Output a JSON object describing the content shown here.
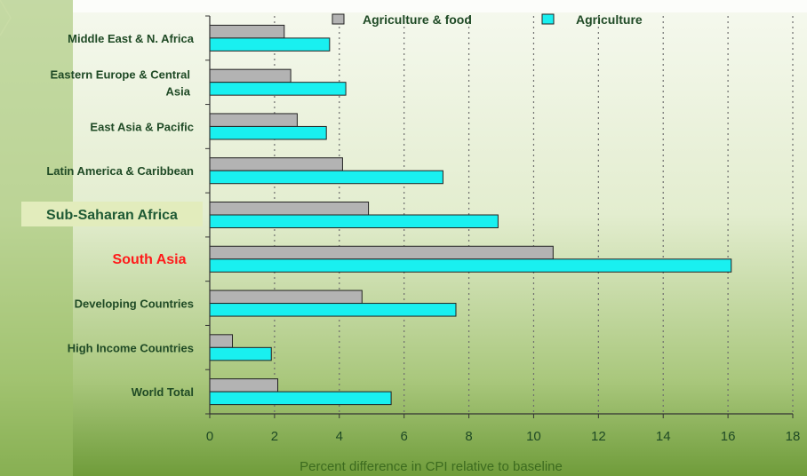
{
  "colors": {
    "background_top": "#f4f8ec",
    "background_bottom": "#6f9c3a",
    "left_band": "#8db55a",
    "series_food": "#b3b3b3",
    "series_agri": "#19f0f0",
    "label_default": "#1f4a25",
    "label_highlight_red": "#ff1a1a",
    "label_highlight_bg": "#e2ecbc",
    "axis_title": "#3c6b1f"
  },
  "chart_data": {
    "type": "bar",
    "orientation": "horizontal",
    "categories": [
      "Middle East & N. Africa",
      "Eastern Europe & Central Asia",
      "East Asia & Pacific",
      "Latin America & Caribbean",
      "Sub-Saharan Africa",
      "South Asia",
      "Developing Countries",
      "High Income Countries",
      "World Total"
    ],
    "highlights": {
      "Sub-Saharan Africa": "boxed",
      "South Asia": "red"
    },
    "series": [
      {
        "name": "Agriculture & food",
        "color": "#b3b3b3",
        "values": [
          2.3,
          2.5,
          2.7,
          4.1,
          4.9,
          10.6,
          4.7,
          0.7,
          2.1
        ]
      },
      {
        "name": "Agriculture",
        "color": "#19f0f0",
        "values": [
          3.7,
          4.2,
          3.6,
          7.2,
          8.9,
          16.1,
          7.6,
          1.9,
          5.6
        ]
      }
    ],
    "xlabel": "Percent difference in CPI relative to baseline",
    "ylabel": "",
    "xlim": [
      0,
      18
    ],
    "xticks": [
      "0",
      "2",
      "4",
      "6",
      "8",
      "10",
      "12",
      "14",
      "16",
      "18"
    ],
    "grid": "vertical-dotted",
    "legend_position": "top"
  }
}
